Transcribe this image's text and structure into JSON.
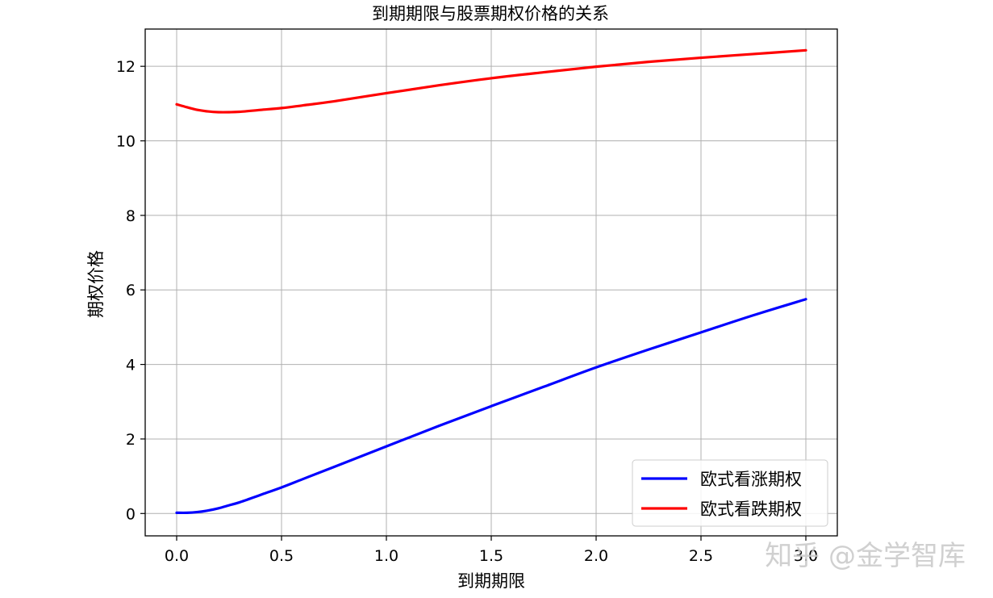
{
  "chart_data": {
    "type": "line",
    "title": "到期期限与股票期权价格的关系",
    "xlabel": "到期期限",
    "ylabel": "期权价格",
    "xlim": [
      -0.15,
      3.15
    ],
    "ylim": [
      -0.6,
      13.0
    ],
    "grid": true,
    "x_ticks": [
      0.0,
      0.5,
      1.0,
      1.5,
      2.0,
      2.5,
      3.0
    ],
    "x_tick_labels": [
      "0.0",
      "0.5",
      "1.0",
      "1.5",
      "2.0",
      "2.5",
      "3.0"
    ],
    "y_ticks": [
      0,
      2,
      4,
      6,
      8,
      10,
      12
    ],
    "y_tick_labels": [
      "0",
      "2",
      "4",
      "6",
      "8",
      "10",
      "12"
    ],
    "legend_position": "lower-right",
    "series": [
      {
        "name": "欧式看涨期权",
        "color": "#0000ff",
        "x": [
          0.0,
          0.05,
          0.1,
          0.15,
          0.2,
          0.25,
          0.3,
          0.4,
          0.5,
          0.6,
          0.75,
          1.0,
          1.25,
          1.5,
          1.75,
          2.0,
          2.25,
          2.5,
          2.75,
          3.0
        ],
        "y": [
          0.02,
          0.02,
          0.04,
          0.08,
          0.14,
          0.22,
          0.3,
          0.5,
          0.7,
          0.92,
          1.25,
          1.8,
          2.35,
          2.88,
          3.4,
          3.92,
          4.4,
          4.86,
          5.32,
          5.75
        ]
      },
      {
        "name": "欧式看跌期权",
        "color": "#ff0000",
        "x": [
          0.0,
          0.05,
          0.1,
          0.15,
          0.2,
          0.25,
          0.3,
          0.4,
          0.5,
          0.6,
          0.75,
          1.0,
          1.25,
          1.5,
          1.75,
          2.0,
          2.25,
          2.5,
          2.75,
          3.0
        ],
        "y": [
          10.98,
          10.9,
          10.83,
          10.79,
          10.77,
          10.77,
          10.78,
          10.83,
          10.88,
          10.95,
          11.06,
          11.28,
          11.49,
          11.68,
          11.84,
          11.99,
          12.12,
          12.23,
          12.33,
          12.43
        ]
      }
    ]
  },
  "watermark": {
    "text": "知乎 @金学智库"
  }
}
